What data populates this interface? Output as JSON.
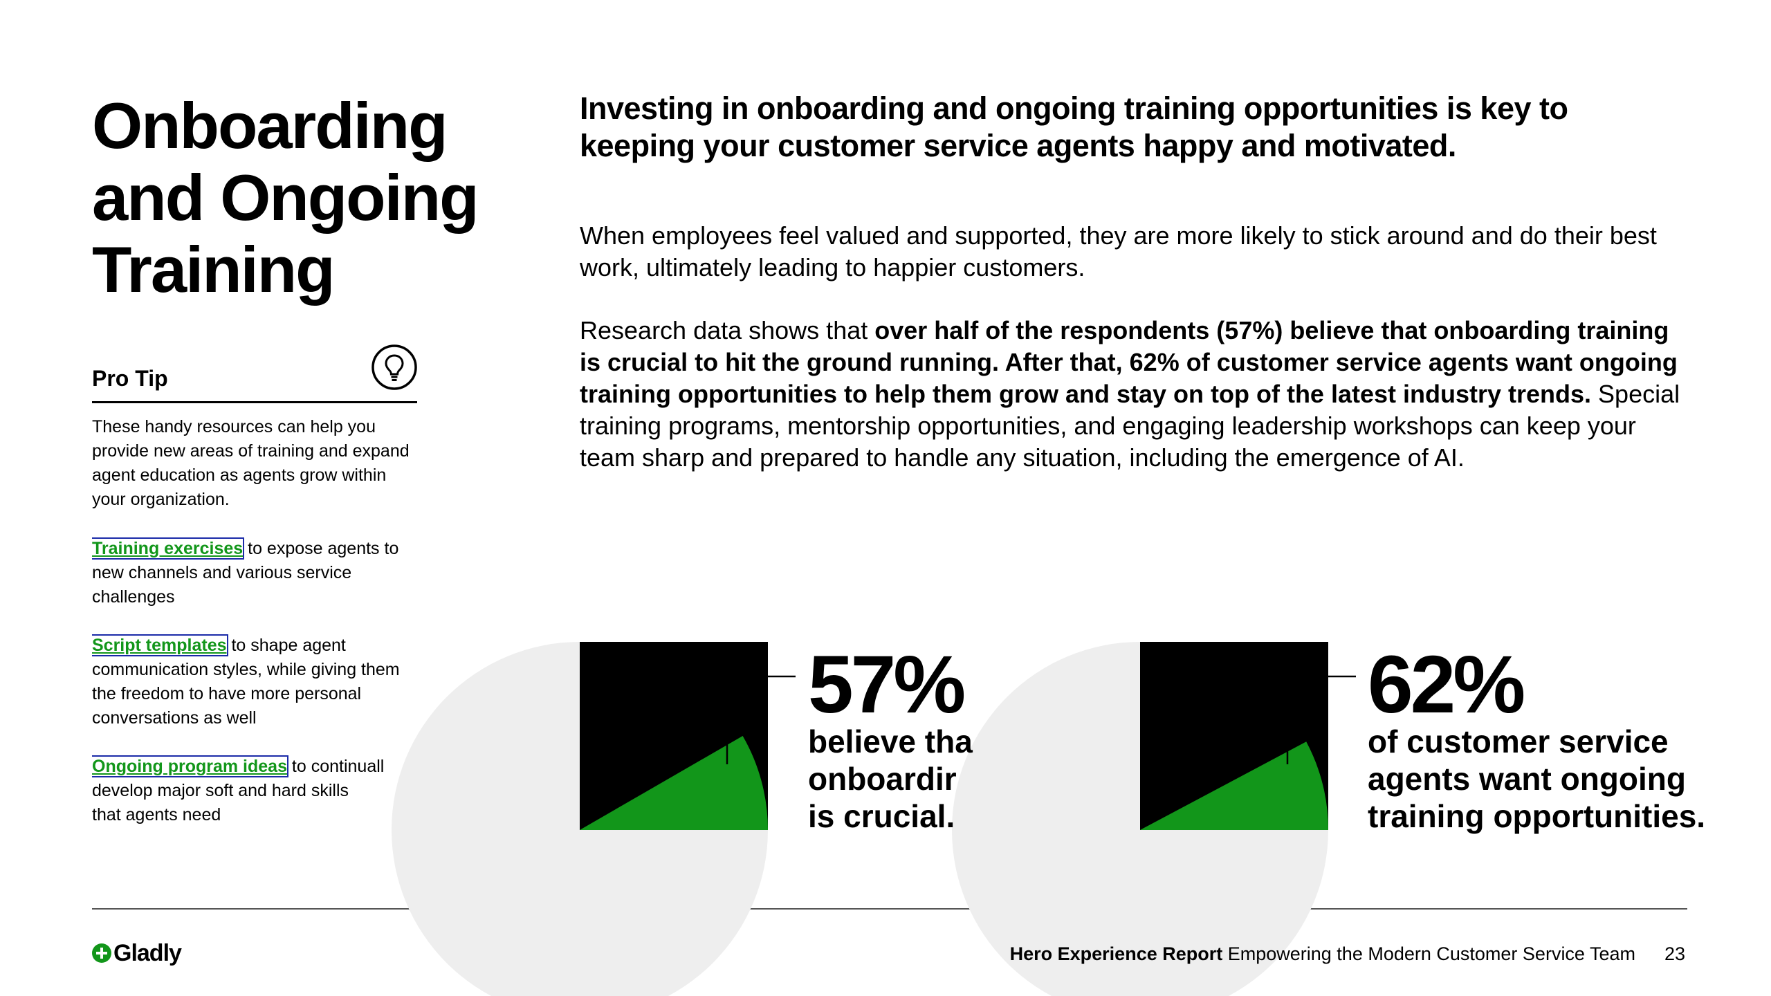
{
  "title": {
    "lines": [
      "Onboarding",
      "and Ongoing",
      "Training"
    ]
  },
  "pro_tip": {
    "heading": "Pro Tip",
    "icon": "lightbulb-icon",
    "intro": "These handy resources can help you provide new areas of training and expand agent education as agents grow within your organization.",
    "resources": [
      {
        "link": "Training exercises",
        "text": " to expose agents to new channels and various service challenges"
      },
      {
        "link": "Script templates",
        "text": " to shape agent communication styles, while giving them the freedom to have more personal conversations as well"
      },
      {
        "link": "Ongoing program ideas",
        "text": " to continuall",
        "lines": [
          "develop major soft and hard skills",
          "that agents need"
        ]
      }
    ]
  },
  "lead": "Investing in onboarding and ongoing training opportunities is key to keeping your customer service agents happy and motivated.",
  "body": {
    "para1": "When employees feel valued and supported, they are more likely to stick around and do their best work, ultimately leading to happier customers.",
    "para2_start": "Research data shows that ",
    "para2_bold": "over half of the respondents (57%) believe that onboarding training is crucial to hit the ground running. After that, 62% of customer service agents want ongoing training opportunities to help them grow and stay on top of the latest industry trends.",
    "para2_end": " Special training programs, mentorship opportunities, and engaging leadership workshops can keep your team sharp and prepared to handle any situation, including the emergence of AI."
  },
  "stats": [
    {
      "value": "57%",
      "percent": 57,
      "desc_lines": [
        "believe tha",
        "onboardir",
        "is crucial."
      ]
    },
    {
      "value": "62%",
      "percent": 62,
      "desc_lines": [
        "of customer service",
        "agents want ongoing",
        "training opportunities."
      ]
    }
  ],
  "colors": {
    "accent": "#12961a",
    "pie_bg": "#eeeeee",
    "ink": "#000000",
    "link_outline": "#1a2aa8"
  },
  "footer": {
    "logo": "Gladly",
    "logo_icon": "plus-circle-icon",
    "report_bold": "Hero Experience Report",
    "report_rest": " Empowering the Modern Customer Service Team",
    "page_number": "23"
  }
}
